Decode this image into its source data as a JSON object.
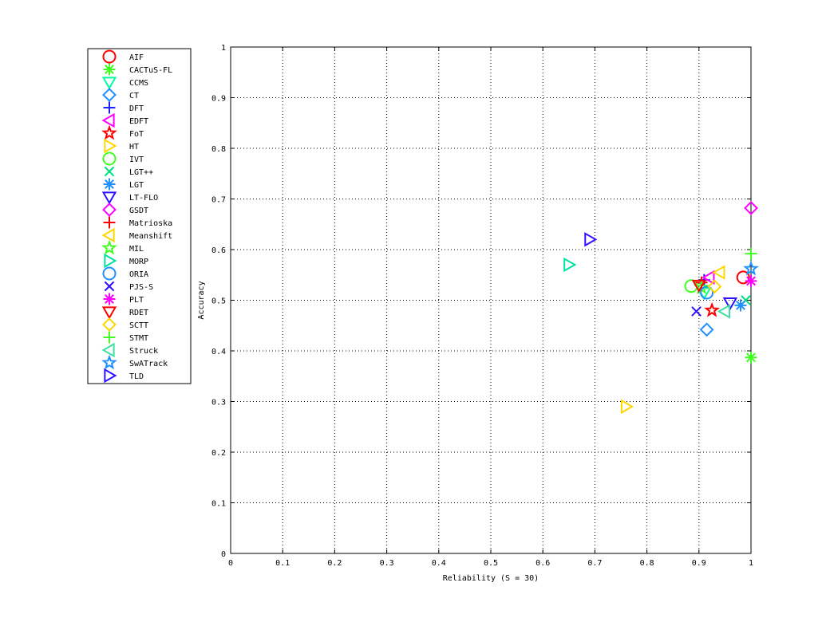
{
  "chart_data": {
    "type": "scatter",
    "xlabel": "Reliability (S = 30)",
    "ylabel": "Accuracy",
    "xlim": [
      0,
      1
    ],
    "ylim": [
      0,
      1
    ],
    "xticks": [
      "0",
      "0.1",
      "0.2",
      "0.3",
      "0.4",
      "0.5",
      "0.6",
      "0.7",
      "0.8",
      "0.9",
      "1"
    ],
    "yticks": [
      "0",
      "0.1",
      "0.2",
      "0.3",
      "0.4",
      "0.5",
      "0.6",
      "0.7",
      "0.8",
      "0.9",
      "1"
    ],
    "grid": true,
    "legend_position": "outside-left",
    "series": [
      {
        "name": "AIF",
        "marker": "circle",
        "color": "#ff0000",
        "x": 0.985,
        "y": 0.545
      },
      {
        "name": "CACTuS-FL",
        "marker": "asterisk",
        "color": "#40ff20",
        "x": 1.0,
        "y": 0.387
      },
      {
        "name": "CCMS",
        "marker": "triangle-down",
        "color": "#00ffa0",
        "x": 0.91,
        "y": 0.515
      },
      {
        "name": "CT",
        "marker": "diamond",
        "color": "#1e90ff",
        "x": 0.915,
        "y": 0.442
      },
      {
        "name": "DFT",
        "marker": "plus",
        "color": "#2020ff",
        "x": 0.91,
        "y": 0.54
      },
      {
        "name": "EDFT",
        "marker": "triangle-left",
        "color": "#ff00ff",
        "x": 0.92,
        "y": 0.545
      },
      {
        "name": "FoT",
        "marker": "star",
        "color": "#ff0000",
        "x": 0.925,
        "y": 0.48
      },
      {
        "name": "HT",
        "marker": "triangle-right",
        "color": "#ffd700",
        "x": 0.76,
        "y": 0.29
      },
      {
        "name": "IVT",
        "marker": "circle",
        "color": "#40ff20",
        "x": 0.885,
        "y": 0.528
      },
      {
        "name": "LGT++",
        "marker": "x",
        "color": "#00e080",
        "x": 0.99,
        "y": 0.5
      },
      {
        "name": "LGT",
        "marker": "asterisk",
        "color": "#1e90ff",
        "x": 0.98,
        "y": 0.49
      },
      {
        "name": "LT-FLO",
        "marker": "triangle-down",
        "color": "#3010ff",
        "x": 0.96,
        "y": 0.495
      },
      {
        "name": "GSDT",
        "marker": "diamond",
        "color": "#ff00ff",
        "x": 1.0,
        "y": 0.682
      },
      {
        "name": "Matrioska",
        "marker": "plus",
        "color": "#ff0000",
        "x": 0.905,
        "y": 0.535
      },
      {
        "name": "Meanshift",
        "marker": "triangle-left",
        "color": "#ffd700",
        "x": 0.94,
        "y": 0.555
      },
      {
        "name": "MIL",
        "marker": "star",
        "color": "#40ff20",
        "x": 0.905,
        "y": 0.525
      },
      {
        "name": "MORP",
        "marker": "triangle-right",
        "color": "#00e0a0",
        "x": 0.65,
        "y": 0.57
      },
      {
        "name": "ORIA",
        "marker": "circle",
        "color": "#1e90ff",
        "x": 0.915,
        "y": 0.515
      },
      {
        "name": "PJS-S",
        "marker": "x",
        "color": "#3010ff",
        "x": 0.895,
        "y": 0.478
      },
      {
        "name": "PLT",
        "marker": "asterisk",
        "color": "#ff00ff",
        "x": 1.0,
        "y": 0.538
      },
      {
        "name": "RDET",
        "marker": "triangle-down",
        "color": "#ff0000",
        "x": 0.9,
        "y": 0.53
      },
      {
        "name": "SCTT",
        "marker": "diamond",
        "color": "#ffd700",
        "x": 0.93,
        "y": 0.527
      },
      {
        "name": "STMT",
        "marker": "plus",
        "color": "#40ff20",
        "x": 1.0,
        "y": 0.592
      },
      {
        "name": "Struck",
        "marker": "triangle-left",
        "color": "#40e0a0",
        "x": 0.95,
        "y": 0.478
      },
      {
        "name": "SwATrack",
        "marker": "star",
        "color": "#1e90ff",
        "x": 1.0,
        "y": 0.562
      },
      {
        "name": "TLD",
        "marker": "triangle-right",
        "color": "#3010ff",
        "x": 0.69,
        "y": 0.62
      }
    ]
  }
}
